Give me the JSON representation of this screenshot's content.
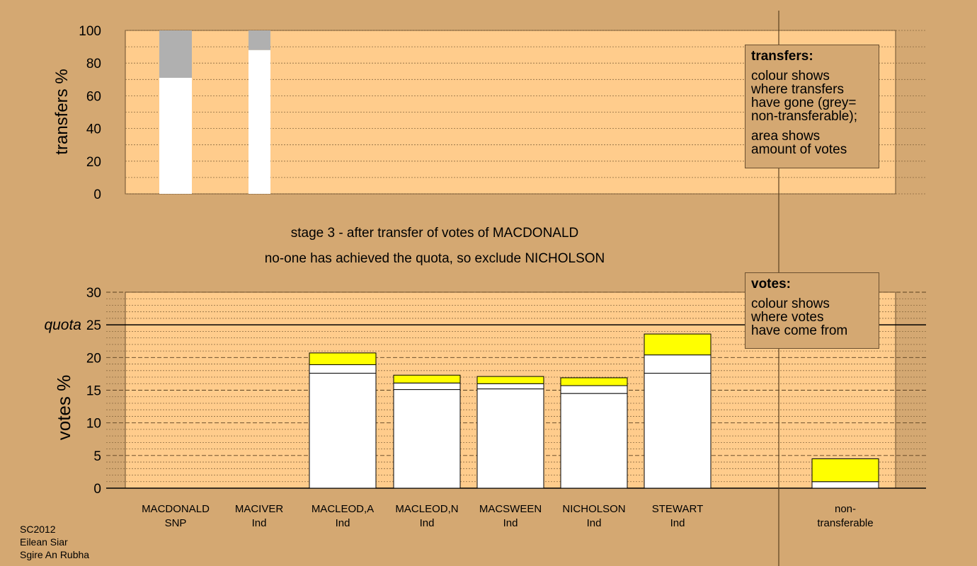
{
  "chart_data": [
    {
      "type": "bar",
      "stacked": true,
      "ylabel": "transfers %",
      "ylim": [
        0,
        100
      ],
      "yticks": [
        0,
        20,
        40,
        60,
        80,
        100
      ],
      "grid": "dotted",
      "bars": [
        {
          "segments": [
            {
              "value": 71,
              "color": "#ffffff"
            },
            {
              "value": 29,
              "color": "#b0b0b0"
            }
          ]
        },
        {
          "segments": [
            {
              "value": 88,
              "color": "#ffffff"
            },
            {
              "value": 12,
              "color": "#b0b0b0"
            }
          ]
        }
      ],
      "legend": {
        "title": "transfers:",
        "lines": [
          "colour shows",
          "where transfers",
          "have gone (grey=",
          "non-transferable);",
          "",
          "area shows",
          "amount of votes"
        ],
        "placement": "top-right"
      }
    },
    {
      "type": "bar",
      "stacked": true,
      "ylabel": "votes %",
      "ylim": [
        0,
        30
      ],
      "yticks": [
        0,
        5,
        10,
        15,
        20,
        25,
        30
      ],
      "quota": {
        "value": 25,
        "label": "quota"
      },
      "grid": "dashed",
      "categories": [
        {
          "name": "MACDONALD",
          "party": "SNP"
        },
        {
          "name": "MACIVER",
          "party": "Ind"
        },
        {
          "name": "MACLEOD,A",
          "party": "Ind"
        },
        {
          "name": "MACLEOD,N",
          "party": "Ind"
        },
        {
          "name": "MACSWEEN",
          "party": "Ind"
        },
        {
          "name": "NICHOLSON",
          "party": "Ind"
        },
        {
          "name": "STEWART",
          "party": "Ind"
        },
        {
          "name": "non-",
          "party": "transferable"
        }
      ],
      "bars": [
        {
          "segments": []
        },
        {
          "segments": []
        },
        {
          "segments": [
            {
              "value": 17.6,
              "color": "#ffffff"
            },
            {
              "value": 1.3,
              "color": "#ffffff"
            },
            {
              "value": 1.8,
              "color": "#ffff00"
            }
          ]
        },
        {
          "segments": [
            {
              "value": 15.1,
              "color": "#ffffff"
            },
            {
              "value": 1.0,
              "color": "#ffffff"
            },
            {
              "value": 1.2,
              "color": "#ffff00"
            }
          ]
        },
        {
          "segments": [
            {
              "value": 15.2,
              "color": "#ffffff"
            },
            {
              "value": 0.8,
              "color": "#ffffff"
            },
            {
              "value": 1.1,
              "color": "#ffff00"
            }
          ]
        },
        {
          "segments": [
            {
              "value": 14.5,
              "color": "#ffffff"
            },
            {
              "value": 1.2,
              "color": "#ffffff"
            },
            {
              "value": 1.2,
              "color": "#ffff00"
            }
          ]
        },
        {
          "segments": [
            {
              "value": 17.6,
              "color": "#ffffff"
            },
            {
              "value": 2.8,
              "color": "#ffffff"
            },
            {
              "value": 3.2,
              "color": "#ffff00"
            }
          ]
        },
        {
          "segments": [
            {
              "value": 1.0,
              "color": "#ffffff"
            },
            {
              "value": 3.5,
              "color": "#ffff00"
            }
          ]
        }
      ],
      "legend": {
        "title": "votes:",
        "lines": [
          "colour shows",
          "where votes",
          "have come from"
        ],
        "placement": "top-right"
      }
    }
  ],
  "stage_text": "stage 3 - after transfer of votes of MACDONALD",
  "status_text": "no-one has achieved the quota, so exclude NICHOLSON",
  "footer": [
    "SC2012",
    "Eilean Siar",
    "Sgire An Rubha"
  ],
  "colors": {
    "background": "#d4a872",
    "plot_area": "#ffcc8c",
    "non_transferable": "#b0b0b0",
    "transfer_in": "#ffff00",
    "base": "#ffffff"
  }
}
